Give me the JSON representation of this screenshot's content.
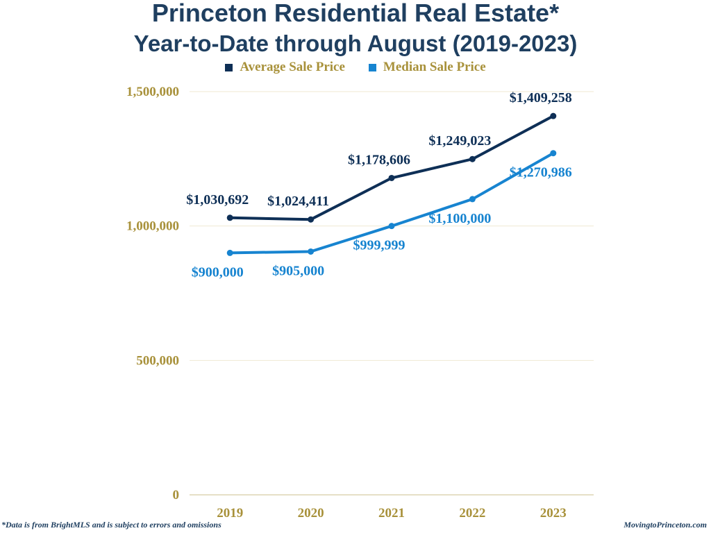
{
  "title": "Princeton Residential Real Estate*",
  "subtitle": "Year-to-Date through August (2019-2023)",
  "footnote": "*Data is from BrightMLS and is subject to errors and omissions",
  "source": "MovingtoPrinceton.com",
  "colors": {
    "title": "#1f3f60",
    "axis_text": "#a8913a",
    "grid": "#efe9d2",
    "average": "#0e2f56",
    "median": "#1784d0"
  },
  "chart_data": {
    "type": "line",
    "categories": [
      "2019",
      "2020",
      "2021",
      "2022",
      "2023"
    ],
    "ylim": [
      0,
      1500000
    ],
    "yticks": [
      0,
      500000,
      1000000,
      1500000
    ],
    "ytick_labels": [
      "0",
      "500,000",
      "1,000,000",
      "1,500,000"
    ],
    "grid": true,
    "legend_position": "top-center",
    "series": [
      {
        "name": "Average Sale Price",
        "color": "#0e2f56",
        "values": [
          1030692,
          1024411,
          1178606,
          1249023,
          1409258
        ],
        "labels": [
          "$1,030,692",
          "$1,024,411",
          "$1,178,606",
          "$1,249,023",
          "$1,409,258"
        ],
        "label_position": [
          "above",
          "above",
          "above",
          "above",
          "above"
        ]
      },
      {
        "name": "Median Sale Price",
        "color": "#1784d0",
        "values": [
          900000,
          905000,
          999999,
          1100000,
          1270986
        ],
        "labels": [
          "$900,000",
          "$905,000",
          "$999,999",
          "$1,100,000",
          "$1,270,986"
        ],
        "label_position": [
          "below",
          "below",
          "below",
          "below",
          "below"
        ]
      }
    ]
  }
}
